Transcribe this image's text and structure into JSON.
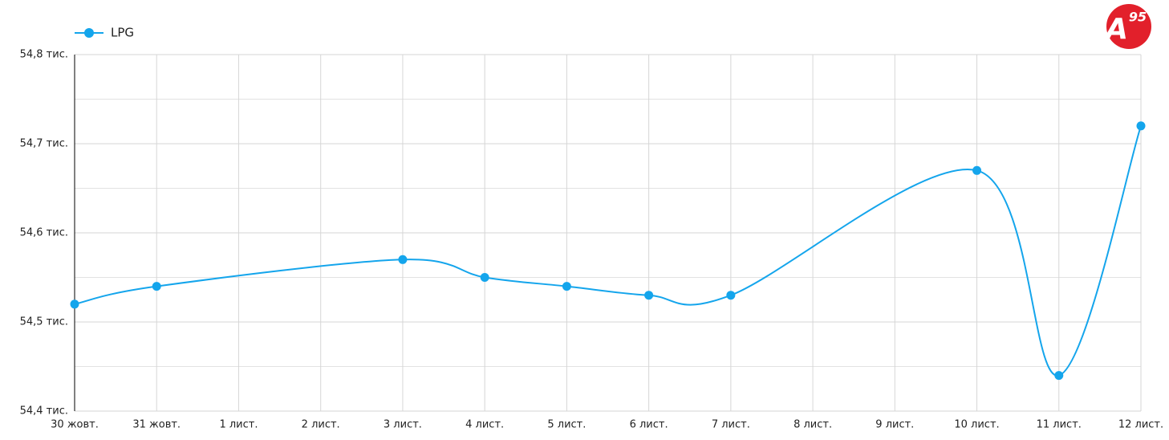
{
  "logo": {
    "main": "A",
    "sup": "95"
  },
  "chart_data": {
    "type": "line",
    "categories": [
      "30 жовт.",
      "31 жовт.",
      "1 лист.",
      "2 лист.",
      "3 лист.",
      "4 лист.",
      "5 лист.",
      "6 лист.",
      "7 лист.",
      "8 лист.",
      "9 лист.",
      "10 лист.",
      "11 лист.",
      "12 лист."
    ],
    "series": [
      {
        "name": "LPG",
        "color": "#14a5ec",
        "values": [
          54520,
          54540,
          null,
          null,
          54570,
          54550,
          54540,
          54530,
          54530,
          null,
          null,
          54670,
          54440,
          54720
        ]
      }
    ],
    "connect_gaps": true,
    "smooth": true,
    "ylim": [
      54400,
      54800
    ],
    "yticks": [
      {
        "value": 54400,
        "label": "54,4 тис."
      },
      {
        "value": 54500,
        "label": "54,5 тис."
      },
      {
        "value": 54600,
        "label": "54,6 тис."
      },
      {
        "value": 54700,
        "label": "54,7 тис."
      },
      {
        "value": 54800,
        "label": "54,8 тис."
      }
    ],
    "yticks_minor": [
      54450,
      54550,
      54650,
      54750
    ],
    "grid": true,
    "legend": "top-left"
  }
}
